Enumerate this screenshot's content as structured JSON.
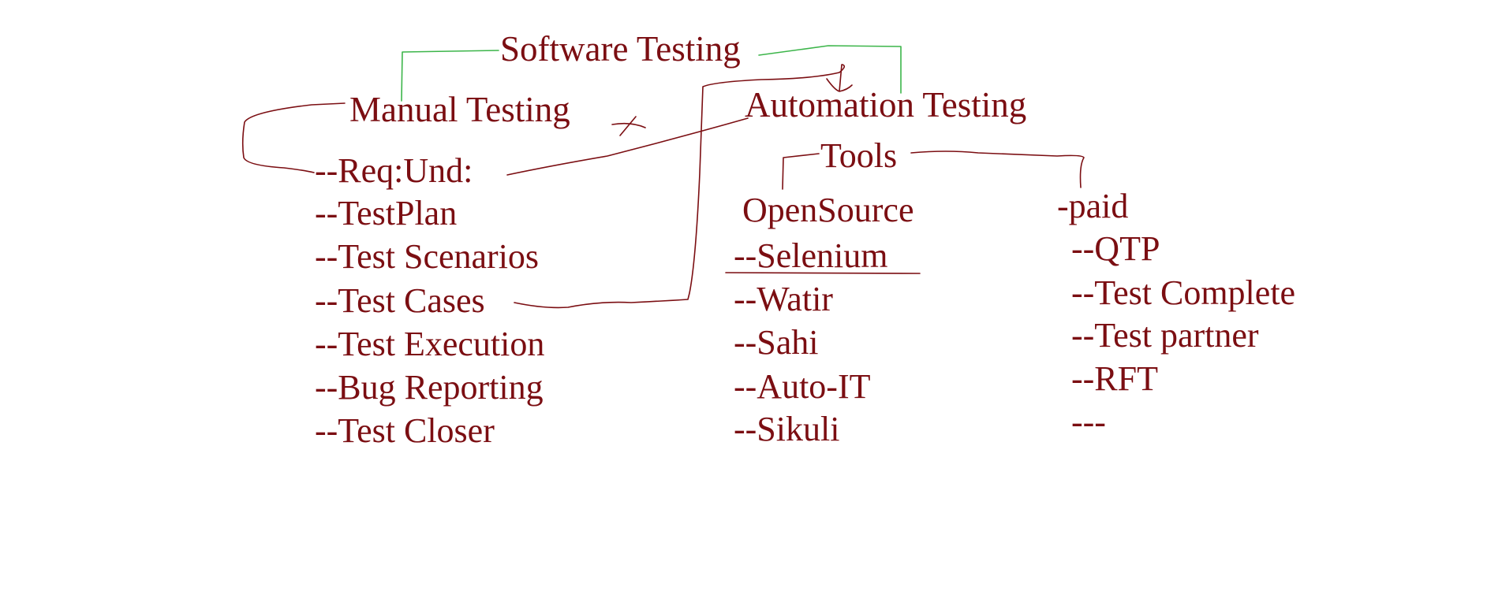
{
  "colors": {
    "ink": "#7b0e12",
    "green_ink": "#3cb54a",
    "background": "#ffffff"
  },
  "root": "Software Testing",
  "manual": {
    "title": "Manual Testing",
    "items": [
      "--Req:Und:",
      "--TestPlan",
      "--Test Scenarios",
      "--Test Cases",
      "--Test Execution",
      "--Bug Reporting",
      "--Test Closer"
    ]
  },
  "automation": {
    "title": "Automation Testing",
    "tools_label": "Tools",
    "opensource": {
      "title": "OpenSource",
      "items": [
        "--Selenium",
        "--Watir",
        "--Sahi",
        "--Auto-IT",
        "--Sikuli"
      ]
    },
    "paid": {
      "title": "-paid",
      "items": [
        "--QTP",
        "--Test Complete",
        "--Test partner",
        "--RFT",
        "---"
      ]
    }
  }
}
